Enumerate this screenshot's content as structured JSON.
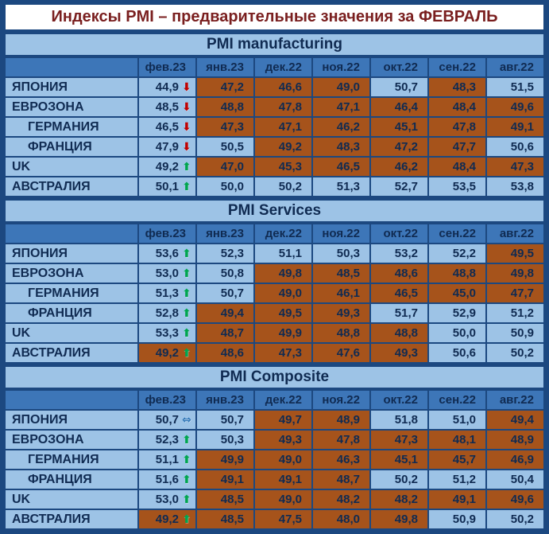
{
  "title": "Индексы PMI – предварительные значения за ФЕВРАЛЬ",
  "columns": [
    "фев.23",
    "янв.23",
    "дек.22",
    "ноя.22",
    "окт.22",
    "сен.22",
    "авг.22"
  ],
  "palette": {
    "page_bg": "#1C4880",
    "cell_blue": "#9DC3E6",
    "cell_brown": "#A6531B",
    "header_row_bg": "#3D76B8",
    "section_header_bg": "#9DC3E6",
    "title_bg": "#FFFFFF",
    "title_color": "#7A1F1F",
    "text_dark": "#102B52"
  },
  "icons": {
    "down": {
      "name": "arrow-down-icon",
      "glyph": "⬇",
      "color": "#C00000"
    },
    "up": {
      "name": "arrow-up-icon",
      "glyph": "⬆",
      "color": "#00A550"
    },
    "flat": {
      "name": "arrow-flat-icon",
      "glyph": "⇔",
      "color": "#2E75B6"
    }
  },
  "chart_data": [
    {
      "type": "table",
      "title": "PMI manufacturing",
      "columns": [
        "фев.23",
        "янв.23",
        "дек.22",
        "ноя.22",
        "окт.22",
        "сен.22",
        "авг.22"
      ],
      "rows": [
        {
          "label": "ЯПОНИЯ",
          "indent": false,
          "trend": "down",
          "values": [
            44.9,
            47.2,
            46.6,
            49.0,
            50.7,
            48.3,
            51.5
          ],
          "cell_colors": [
            "blue",
            "brown",
            "brown",
            "brown",
            "blue",
            "brown",
            "blue"
          ]
        },
        {
          "label": "ЕВРОЗОНА",
          "indent": false,
          "trend": "down",
          "values": [
            48.5,
            48.8,
            47.8,
            47.1,
            46.4,
            48.4,
            49.6
          ],
          "cell_colors": [
            "blue",
            "brown",
            "brown",
            "brown",
            "brown",
            "brown",
            "brown"
          ]
        },
        {
          "label": "ГЕРМАНИЯ",
          "indent": true,
          "trend": "down",
          "values": [
            46.5,
            47.3,
            47.1,
            46.2,
            45.1,
            47.8,
            49.1
          ],
          "cell_colors": [
            "blue",
            "brown",
            "brown",
            "brown",
            "brown",
            "brown",
            "brown"
          ]
        },
        {
          "label": "ФРАНЦИЯ",
          "indent": true,
          "trend": "down",
          "values": [
            47.9,
            50.5,
            49.2,
            48.3,
            47.2,
            47.7,
            50.6
          ],
          "cell_colors": [
            "blue",
            "blue",
            "brown",
            "brown",
            "brown",
            "brown",
            "blue"
          ]
        },
        {
          "label": "UK",
          "indent": false,
          "trend": "up",
          "values": [
            49.2,
            47.0,
            45.3,
            46.5,
            46.2,
            48.4,
            47.3
          ],
          "cell_colors": [
            "blue",
            "brown",
            "brown",
            "brown",
            "brown",
            "brown",
            "brown"
          ]
        },
        {
          "label": "АВСТРАЛИЯ",
          "indent": false,
          "trend": "up",
          "values": [
            50.1,
            50.0,
            50.2,
            51.3,
            52.7,
            53.5,
            53.8
          ],
          "cell_colors": [
            "blue",
            "blue",
            "blue",
            "blue",
            "blue",
            "blue",
            "blue"
          ]
        }
      ]
    },
    {
      "type": "table",
      "title": "PMI Services",
      "columns": [
        "фев.23",
        "янв.23",
        "дек.22",
        "ноя.22",
        "окт.22",
        "сен.22",
        "авг.22"
      ],
      "rows": [
        {
          "label": "ЯПОНИЯ",
          "indent": false,
          "trend": "up",
          "values": [
            53.6,
            52.3,
            51.1,
            50.3,
            53.2,
            52.2,
            49.5
          ],
          "cell_colors": [
            "blue",
            "blue",
            "blue",
            "blue",
            "blue",
            "blue",
            "brown"
          ]
        },
        {
          "label": "ЕВРОЗОНА",
          "indent": false,
          "trend": "up",
          "values": [
            53.0,
            50.8,
            49.8,
            48.5,
            48.6,
            48.8,
            49.8
          ],
          "cell_colors": [
            "blue",
            "blue",
            "brown",
            "brown",
            "brown",
            "brown",
            "brown"
          ]
        },
        {
          "label": "ГЕРМАНИЯ",
          "indent": true,
          "trend": "up",
          "values": [
            51.3,
            50.7,
            49.0,
            46.1,
            46.5,
            45.0,
            47.7
          ],
          "cell_colors": [
            "blue",
            "blue",
            "brown",
            "brown",
            "brown",
            "brown",
            "brown"
          ]
        },
        {
          "label": "ФРАНЦИЯ",
          "indent": true,
          "trend": "up",
          "values": [
            52.8,
            49.4,
            49.5,
            49.3,
            51.7,
            52.9,
            51.2
          ],
          "cell_colors": [
            "blue",
            "brown",
            "brown",
            "brown",
            "blue",
            "blue",
            "blue"
          ]
        },
        {
          "label": "UK",
          "indent": false,
          "trend": "up",
          "values": [
            53.3,
            48.7,
            49.9,
            48.8,
            48.8,
            50.0,
            50.9
          ],
          "cell_colors": [
            "blue",
            "brown",
            "brown",
            "brown",
            "brown",
            "blue",
            "blue"
          ]
        },
        {
          "label": "АВСТРАЛИЯ",
          "indent": false,
          "trend": "up",
          "values": [
            49.2,
            48.6,
            47.3,
            47.6,
            49.3,
            50.6,
            50.2
          ],
          "cell_colors": [
            "brown",
            "brown",
            "brown",
            "brown",
            "brown",
            "blue",
            "blue"
          ]
        }
      ]
    },
    {
      "type": "table",
      "title": "PMI Composite",
      "columns": [
        "фев.23",
        "янв.23",
        "дек.22",
        "ноя.22",
        "окт.22",
        "сен.22",
        "авг.22"
      ],
      "rows": [
        {
          "label": "ЯПОНИЯ",
          "indent": false,
          "trend": "flat",
          "values": [
            50.7,
            50.7,
            49.7,
            48.9,
            51.8,
            51.0,
            49.4
          ],
          "cell_colors": [
            "blue",
            "blue",
            "brown",
            "brown",
            "blue",
            "blue",
            "brown"
          ]
        },
        {
          "label": "ЕВРОЗОНА",
          "indent": false,
          "trend": "up",
          "values": [
            52.3,
            50.3,
            49.3,
            47.8,
            47.3,
            48.1,
            48.9
          ],
          "cell_colors": [
            "blue",
            "blue",
            "brown",
            "brown",
            "brown",
            "brown",
            "brown"
          ]
        },
        {
          "label": "ГЕРМАНИЯ",
          "indent": true,
          "trend": "up",
          "values": [
            51.1,
            49.9,
            49.0,
            46.3,
            45.1,
            45.7,
            46.9
          ],
          "cell_colors": [
            "blue",
            "brown",
            "brown",
            "brown",
            "brown",
            "brown",
            "brown"
          ]
        },
        {
          "label": "ФРАНЦИЯ",
          "indent": true,
          "trend": "up",
          "values": [
            51.6,
            49.1,
            49.1,
            48.7,
            50.2,
            51.2,
            50.4
          ],
          "cell_colors": [
            "blue",
            "brown",
            "brown",
            "brown",
            "blue",
            "blue",
            "blue"
          ]
        },
        {
          "label": "UK",
          "indent": false,
          "trend": "up",
          "values": [
            53.0,
            48.5,
            49.0,
            48.2,
            48.2,
            49.1,
            49.6
          ],
          "cell_colors": [
            "blue",
            "brown",
            "brown",
            "brown",
            "brown",
            "brown",
            "brown"
          ]
        },
        {
          "label": "АВСТРАЛИЯ",
          "indent": false,
          "trend": "up",
          "values": [
            49.2,
            48.5,
            47.5,
            48.0,
            49.8,
            50.9,
            50.2
          ],
          "cell_colors": [
            "brown",
            "brown",
            "brown",
            "brown",
            "brown",
            "blue",
            "blue"
          ]
        }
      ]
    }
  ]
}
